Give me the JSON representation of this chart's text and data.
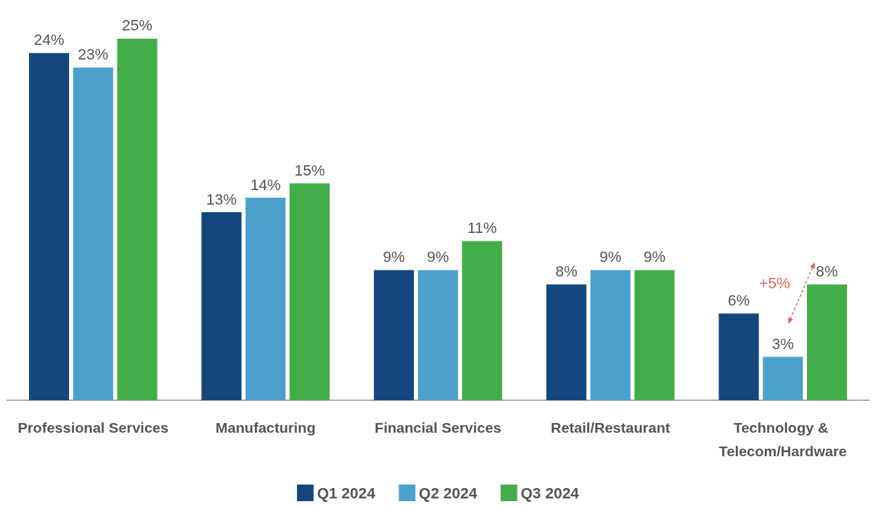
{
  "chart_data": {
    "type": "bar",
    "categories": [
      "Professional Services",
      "Manufacturing",
      "Financial Services",
      "Retail/Restaurant",
      "Technology & Telecom/Hardware"
    ],
    "series": [
      {
        "name": "Q1 2024",
        "color": "#15477d",
        "values": [
          24,
          13,
          9,
          8,
          6
        ],
        "value_labels": [
          "24%",
          "13%",
          "9%",
          "8%",
          "6%"
        ]
      },
      {
        "name": "Q2 2024",
        "color": "#4ca0cc",
        "values": [
          23,
          14,
          9,
          9,
          3
        ],
        "value_labels": [
          "23%",
          "14%",
          "9%",
          "9%",
          "3%"
        ]
      },
      {
        "name": "Q3 2024",
        "color": "#43ae49",
        "values": [
          25,
          15,
          11,
          9,
          8
        ],
        "value_labels": [
          "25%",
          "15%",
          "11%",
          "9%",
          "8%"
        ]
      }
    ],
    "legend": "bottom",
    "annotations": [
      "+5%"
    ]
  }
}
